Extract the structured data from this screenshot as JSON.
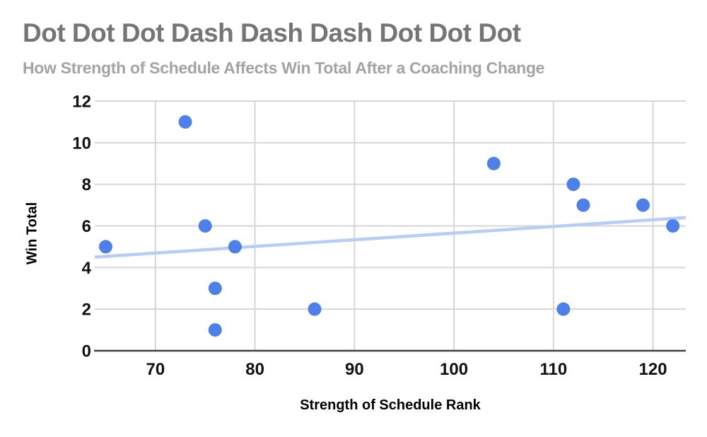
{
  "header": {
    "title": "Dot Dot Dot Dash Dash Dash Dot Dot Dot",
    "subtitle": "How Strength of Schedule Affects Win Total After a Coaching Change"
  },
  "chart_data": {
    "type": "scatter",
    "title": "Dot Dot Dot Dash Dash Dash Dot Dot Dot",
    "subtitle": "How Strength of Schedule Affects Win Total After a Coaching Change",
    "xlabel": "Strength of Schedule Rank",
    "ylabel": "Win Total",
    "xlim": [
      63.9,
      123.3
    ],
    "ylim": [
      0,
      12
    ],
    "x_ticks": [
      70,
      80,
      90,
      100,
      110,
      120
    ],
    "y_ticks": [
      0,
      2,
      4,
      6,
      8,
      10,
      12
    ],
    "grid": true,
    "legend": "none",
    "points": [
      {
        "x": 65,
        "y": 5
      },
      {
        "x": 73,
        "y": 11
      },
      {
        "x": 75,
        "y": 6
      },
      {
        "x": 76,
        "y": 3
      },
      {
        "x": 76,
        "y": 1
      },
      {
        "x": 78,
        "y": 5
      },
      {
        "x": 86,
        "y": 2
      },
      {
        "x": 104,
        "y": 9
      },
      {
        "x": 111,
        "y": 2
      },
      {
        "x": 112,
        "y": 8
      },
      {
        "x": 113,
        "y": 7
      },
      {
        "x": 119,
        "y": 7
      },
      {
        "x": 122,
        "y": 6
      }
    ],
    "trendline": {
      "x1": 63.9,
      "y1": 4.5,
      "x2": 123.3,
      "y2": 6.4
    },
    "colors": {
      "point": "#4d81e9",
      "trendline": "#b7cdf6",
      "gridline": "#d6d6d6",
      "axis": "#424242",
      "tick_label": "#111111",
      "axis_title": "#000000",
      "title": "#757575",
      "subtitle": "#a3a3a3"
    }
  }
}
